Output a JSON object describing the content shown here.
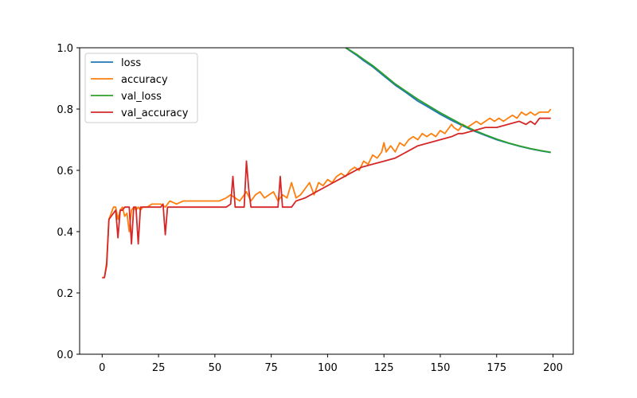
{
  "chart_data": {
    "type": "line",
    "title": "",
    "xlabel": "",
    "ylabel": "",
    "xlim": [
      -10,
      209
    ],
    "ylim": [
      0.0,
      1.0
    ],
    "xticks": [
      0,
      25,
      50,
      75,
      100,
      125,
      150,
      175,
      200
    ],
    "yticks": [
      0.0,
      0.2,
      0.4,
      0.6,
      0.8,
      1.0
    ],
    "xtick_labels": [
      "0",
      "25",
      "50",
      "75",
      "100",
      "125",
      "150",
      "175",
      "200"
    ],
    "ytick_labels": [
      "0.0",
      "0.2",
      "0.4",
      "0.6",
      "0.8",
      "1.0"
    ],
    "grid": false,
    "legend_position": "top-left",
    "series": [
      {
        "name": "loss",
        "color": "#1f77b4",
        "x": [
          108,
          110,
          113,
          116,
          120,
          125,
          130,
          135,
          140,
          145,
          150,
          155,
          160,
          165,
          170,
          175,
          180,
          185,
          190,
          195,
          199
        ],
        "y": [
          1.0,
          0.99,
          0.975,
          0.958,
          0.938,
          0.908,
          0.878,
          0.853,
          0.826,
          0.805,
          0.783,
          0.763,
          0.745,
          0.728,
          0.714,
          0.7,
          0.689,
          0.679,
          0.67,
          0.663,
          0.658
        ]
      },
      {
        "name": "accuracy",
        "color": "#ff7f0e",
        "x": [
          0,
          1,
          2,
          3,
          4,
          5,
          6,
          7,
          8,
          9,
          10,
          11,
          12,
          13,
          14,
          15,
          16,
          17,
          18,
          20,
          22,
          24,
          26,
          28,
          30,
          33,
          36,
          40,
          44,
          48,
          52,
          55,
          57,
          59,
          61,
          63,
          64,
          66,
          68,
          70,
          72,
          74,
          76,
          78,
          80,
          82,
          84,
          86,
          88,
          90,
          92,
          94,
          96,
          98,
          100,
          102,
          104,
          106,
          108,
          110,
          112,
          114,
          116,
          118,
          120,
          122,
          124,
          125,
          126,
          128,
          130,
          132,
          134,
          136,
          138,
          140,
          142,
          144,
          146,
          148,
          150,
          152,
          154,
          155,
          156,
          158,
          160,
          162,
          164,
          166,
          168,
          170,
          172,
          174,
          176,
          178,
          180,
          182,
          184,
          186,
          188,
          190,
          192,
          194,
          196,
          198,
          199
        ],
        "y": [
          0.25,
          0.25,
          0.3,
          0.44,
          0.46,
          0.48,
          0.48,
          0.44,
          0.47,
          0.48,
          0.45,
          0.46,
          0.4,
          0.47,
          0.48,
          0.47,
          0.48,
          0.47,
          0.48,
          0.48,
          0.49,
          0.49,
          0.49,
          0.48,
          0.5,
          0.49,
          0.5,
          0.5,
          0.5,
          0.5,
          0.5,
          0.51,
          0.52,
          0.51,
          0.5,
          0.52,
          0.53,
          0.5,
          0.52,
          0.53,
          0.51,
          0.52,
          0.53,
          0.5,
          0.52,
          0.51,
          0.56,
          0.51,
          0.52,
          0.54,
          0.56,
          0.52,
          0.56,
          0.55,
          0.57,
          0.56,
          0.58,
          0.59,
          0.58,
          0.6,
          0.61,
          0.6,
          0.63,
          0.62,
          0.65,
          0.64,
          0.66,
          0.69,
          0.66,
          0.68,
          0.66,
          0.69,
          0.68,
          0.7,
          0.71,
          0.7,
          0.72,
          0.71,
          0.72,
          0.71,
          0.73,
          0.72,
          0.74,
          0.75,
          0.74,
          0.73,
          0.75,
          0.74,
          0.75,
          0.76,
          0.75,
          0.76,
          0.77,
          0.76,
          0.77,
          0.76,
          0.77,
          0.78,
          0.77,
          0.79,
          0.78,
          0.79,
          0.78,
          0.79,
          0.79,
          0.79,
          0.8
        ]
      },
      {
        "name": "val_loss",
        "color": "#2ca02c",
        "x": [
          108,
          110,
          113,
          116,
          120,
          125,
          130,
          135,
          140,
          145,
          150,
          155,
          160,
          165,
          170,
          175,
          180,
          185,
          190,
          195,
          199
        ],
        "y": [
          1.0,
          0.992,
          0.978,
          0.962,
          0.942,
          0.912,
          0.882,
          0.857,
          0.832,
          0.81,
          0.788,
          0.768,
          0.748,
          0.731,
          0.716,
          0.702,
          0.69,
          0.68,
          0.671,
          0.664,
          0.659
        ]
      },
      {
        "name": "val_accuracy",
        "color": "#d62728",
        "x": [
          0,
          1,
          2,
          3,
          4,
          5,
          6,
          7,
          8,
          9,
          10,
          11,
          12,
          13,
          14,
          15,
          16,
          17,
          18,
          20,
          22,
          24,
          26,
          27,
          28,
          29,
          30,
          35,
          40,
          45,
          50,
          55,
          57,
          58,
          59,
          60,
          62,
          63,
          64,
          65,
          66,
          68,
          70,
          74,
          78,
          79,
          80,
          81,
          82,
          84,
          86,
          90,
          95,
          100,
          105,
          110,
          115,
          120,
          125,
          130,
          135,
          140,
          145,
          150,
          155,
          158,
          160,
          165,
          170,
          175,
          180,
          185,
          188,
          190,
          192,
          194,
          195,
          196,
          198,
          199
        ],
        "y": [
          0.25,
          0.25,
          0.29,
          0.44,
          0.45,
          0.46,
          0.47,
          0.38,
          0.47,
          0.47,
          0.48,
          0.48,
          0.48,
          0.36,
          0.48,
          0.48,
          0.36,
          0.48,
          0.48,
          0.48,
          0.48,
          0.48,
          0.48,
          0.49,
          0.39,
          0.48,
          0.48,
          0.48,
          0.48,
          0.48,
          0.48,
          0.48,
          0.49,
          0.58,
          0.48,
          0.48,
          0.48,
          0.48,
          0.63,
          0.54,
          0.48,
          0.48,
          0.48,
          0.48,
          0.48,
          0.58,
          0.48,
          0.48,
          0.48,
          0.48,
          0.5,
          0.51,
          0.53,
          0.55,
          0.57,
          0.59,
          0.61,
          0.62,
          0.63,
          0.64,
          0.66,
          0.68,
          0.69,
          0.7,
          0.71,
          0.72,
          0.72,
          0.73,
          0.74,
          0.74,
          0.75,
          0.76,
          0.75,
          0.76,
          0.75,
          0.77,
          0.77,
          0.77,
          0.77,
          0.77
        ]
      }
    ]
  }
}
